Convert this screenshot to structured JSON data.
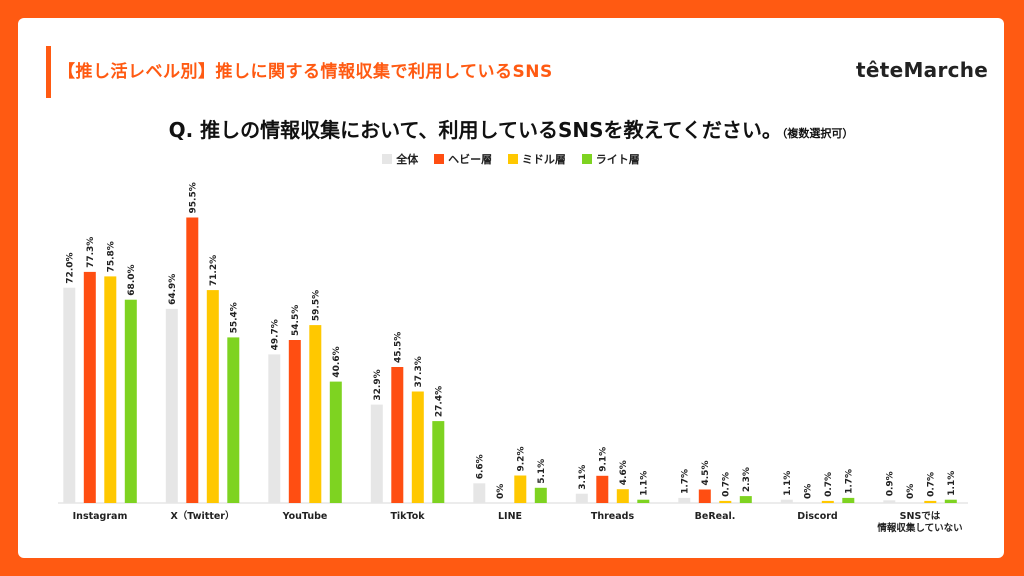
{
  "header": {
    "title": "【推し活レベル別】推しに関する情報収集で利用しているSNS",
    "logo": "têteMarche"
  },
  "question": {
    "text": "Q. 推しの情報収集において、利用しているSNSを教えてください。",
    "note": "（複数選択可）"
  },
  "colors": {
    "brand": "#FF5A12",
    "all": "#E6E6E6",
    "heavy": "#FF4E12",
    "middle": "#FFC800",
    "light": "#7ED321"
  },
  "chart_data": {
    "type": "bar",
    "categories": [
      "Instagram",
      "X（Twitter）",
      "YouTube",
      "TikTok",
      "LINE",
      "Threads",
      "BeReal.",
      "Discord",
      "SNSでは\n情報収集していない"
    ],
    "series": [
      {
        "name": "全体",
        "values": [
          72.0,
          64.9,
          49.7,
          32.9,
          6.6,
          3.1,
          1.7,
          1.1,
          0.9
        ]
      },
      {
        "name": "ヘビー層",
        "values": [
          77.3,
          95.5,
          54.5,
          45.5,
          0,
          9.1,
          4.5,
          0,
          0
        ]
      },
      {
        "name": "ミドル層",
        "values": [
          75.8,
          71.2,
          59.5,
          37.3,
          9.2,
          4.6,
          0.7,
          0.7,
          0.7
        ]
      },
      {
        "name": "ライト層",
        "values": [
          68.0,
          55.4,
          40.6,
          27.4,
          5.1,
          1.1,
          2.3,
          1.7,
          1.1
        ]
      }
    ],
    "labels": [
      [
        "72.0%",
        "64.9%",
        "49.7%",
        "32.9%",
        "6.6%",
        "3.1%",
        "1.7%",
        "1.1%",
        "0.9%"
      ],
      [
        "77.3%",
        "95.5%",
        "54.5%",
        "45.5%",
        "0%",
        "9.1%",
        "4.5%",
        "0%",
        "0%"
      ],
      [
        "75.8%",
        "71.2%",
        "59.5%",
        "37.3%",
        "9.2%",
        "4.6%",
        "0.7%",
        "0.7%",
        "0.7%"
      ],
      [
        "68.0%",
        "55.4%",
        "40.6%",
        "27.4%",
        "5.1%",
        "1.1%",
        "2.3%",
        "1.7%",
        "1.1%"
      ]
    ],
    "ylim": [
      0,
      100
    ],
    "grid": false,
    "legend_position": "top-center"
  }
}
